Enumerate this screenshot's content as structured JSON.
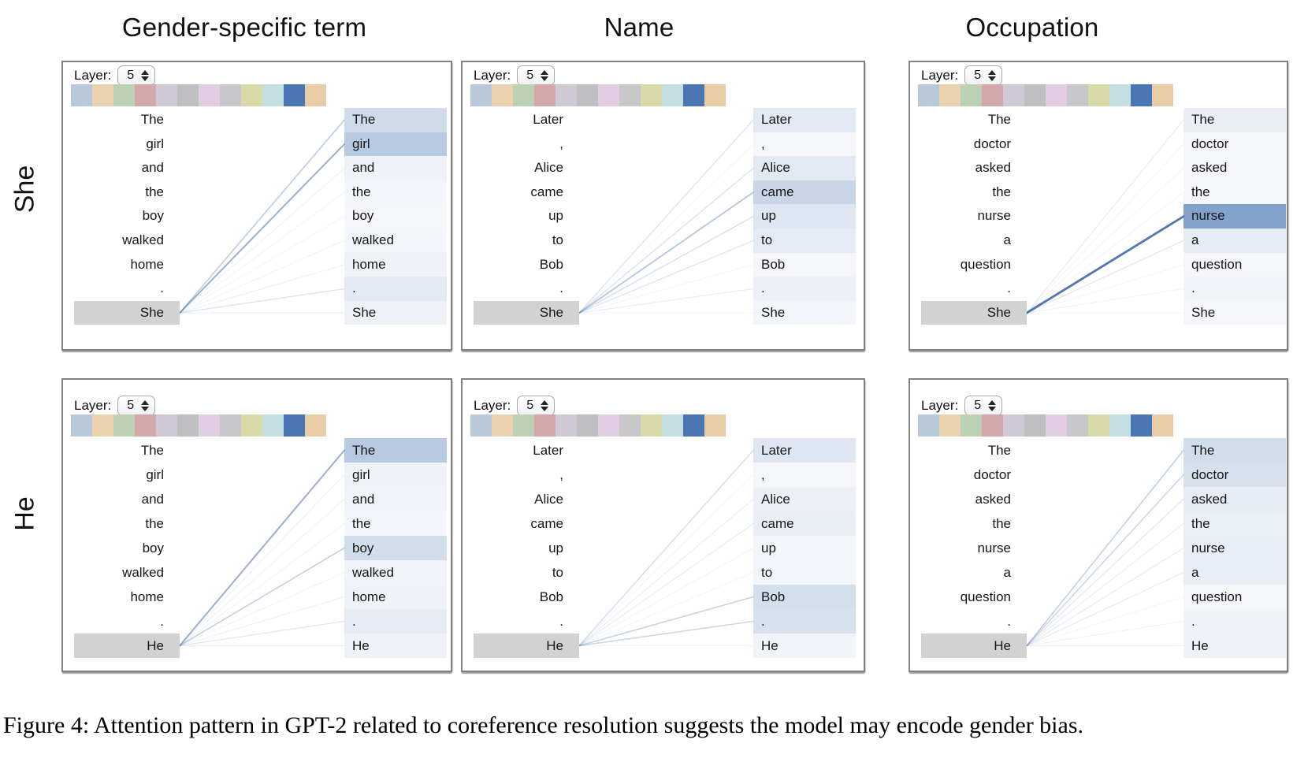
{
  "figure": {
    "caption": "Figure 4: Attention pattern in GPT-2 related to coreference resolution suggests the model may encode gender bias."
  },
  "column_headers": [
    "Gender-specific term",
    "Name",
    "Occupation"
  ],
  "row_labels": [
    "She",
    "He"
  ],
  "layer_control": {
    "label": "Layer:",
    "value": "5"
  },
  "head_colors": [
    "#b7c9db",
    "#ebd2af",
    "#bcd1b4",
    "#d3a8ad",
    "#cfc8d5",
    "#bfbfc2",
    "#e2cee2",
    "#c7c7c9",
    "#d9daa8",
    "#c3dfe1",
    "#4a77b4",
    "#e8cca5"
  ],
  "selected_head_color": "#4a77b4",
  "attention_color": "#4a77b4",
  "source_highlight_color": "#d2d2d2",
  "panels": [
    {
      "row": "She",
      "column": "Gender-specific term",
      "tokens": [
        "The",
        "girl",
        "and",
        "the",
        "boy",
        "walked",
        "home",
        ".",
        "She"
      ],
      "source_token": "She",
      "attention": [
        0.32,
        0.52,
        0.06,
        0.04,
        0.02,
        0.04,
        0.06,
        0.16,
        0.07
      ]
    },
    {
      "row": "She",
      "column": "Name",
      "tokens": [
        "Later",
        ",",
        "Alice",
        "came",
        "up",
        "to",
        "Bob",
        ".",
        "She"
      ],
      "source_token": "She",
      "attention": [
        0.16,
        0.02,
        0.17,
        0.38,
        0.2,
        0.15,
        0.02,
        0.08,
        0.03
      ]
    },
    {
      "row": "She",
      "column": "Occupation",
      "tokens": [
        "The",
        "doctor",
        "asked",
        "the",
        "nurse",
        "a",
        "question",
        ".",
        "She"
      ],
      "source_token": "She",
      "attention": [
        0.1,
        0.02,
        0.02,
        0.02,
        0.95,
        0.14,
        0.02,
        0.05,
        0.02
      ]
    },
    {
      "row": "He",
      "column": "Gender-specific term",
      "tokens": [
        "The",
        "girl",
        "and",
        "the",
        "boy",
        "walked",
        "home",
        ".",
        "He"
      ],
      "source_token": "He",
      "attention": [
        0.52,
        0.06,
        0.05,
        0.04,
        0.3,
        0.05,
        0.06,
        0.14,
        0.07
      ]
    },
    {
      "row": "He",
      "column": "Name",
      "tokens": [
        "Later",
        ",",
        "Alice",
        "came",
        "up",
        "to",
        "Bob",
        ".",
        "He"
      ],
      "source_token": "He",
      "attention": [
        0.2,
        0.02,
        0.08,
        0.1,
        0.04,
        0.03,
        0.28,
        0.26,
        0.05
      ]
    },
    {
      "row": "He",
      "column": "Occupation",
      "tokens": [
        "The",
        "doctor",
        "asked",
        "the",
        "nurse",
        "a",
        "question",
        ".",
        "He"
      ],
      "source_token": "He",
      "attention": [
        0.3,
        0.26,
        0.13,
        0.09,
        0.11,
        0.11,
        0.02,
        0.06,
        0.07
      ]
    }
  ]
}
